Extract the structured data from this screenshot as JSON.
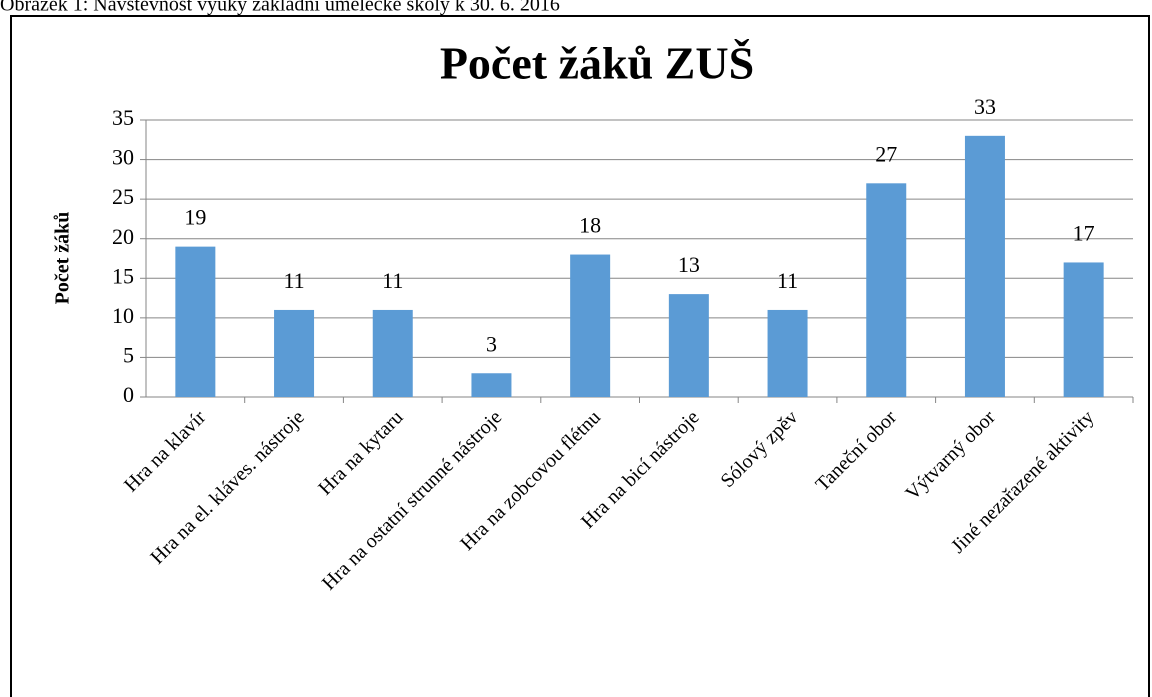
{
  "chart_data": {
    "type": "bar",
    "caption": "Obrázek 1: Návštěvnost výuky základní umělecké školy k 30. 6. 2016",
    "title": "Počet žáků ZUŠ",
    "y_label": "Počet žáků",
    "categories": [
      "Hra na klavír",
      "Hra na el. kláves. nástroje",
      "Hra na kytaru",
      "Hra na ostatní strunné nástroje",
      "Hra na zobcovou flétnu",
      "Hra na bicí nástroje",
      "Sólový zpěv",
      "Taneční obor",
      "Výtvarný obor",
      "Jiné nezařazené aktivity"
    ],
    "values": [
      19,
      11,
      11,
      3,
      18,
      13,
      11,
      27,
      33,
      17
    ],
    "color": "#5b9bd5",
    "ylim": [
      0,
      35
    ],
    "yticks": [
      0,
      5,
      10,
      15,
      20,
      25,
      30,
      35
    ],
    "grid": true
  }
}
